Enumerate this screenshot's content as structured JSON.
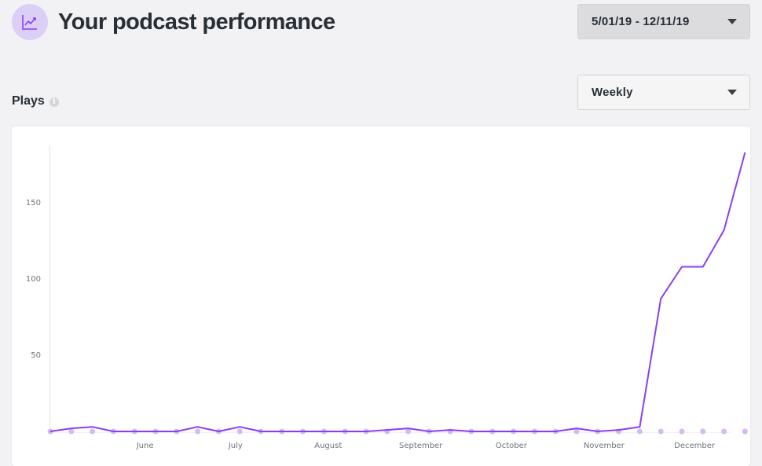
{
  "header": {
    "title": "Your podcast performance",
    "icon": "trend-chart-icon",
    "date_range": "5/01/19 - 12/11/19"
  },
  "plays_section": {
    "title": "Plays",
    "period": "Weekly"
  },
  "colors": {
    "accent": "#8a3ff0",
    "marker": "#d4b8f8",
    "icon_bg": "#dccff7"
  },
  "chart_data": {
    "type": "line",
    "title": "Plays",
    "xlabel": "",
    "ylabel": "",
    "ylim": [
      0,
      183
    ],
    "y_ticks": [
      50,
      100,
      150
    ],
    "grid": false,
    "x_tick_labels": [
      "June",
      "July",
      "August",
      "September",
      "October",
      "November",
      "December"
    ],
    "x_tick_positions": [
      4.5,
      8.8,
      13.2,
      17.6,
      21.9,
      26.3,
      30.6
    ],
    "series": [
      {
        "values": [
          0,
          2,
          3,
          0,
          0,
          0,
          0,
          3,
          0,
          3,
          0,
          0,
          0,
          0,
          0,
          0,
          1,
          2,
          0,
          1,
          0,
          0,
          0,
          0,
          0,
          2,
          0,
          1,
          3,
          87,
          108,
          108,
          132,
          183
        ]
      }
    ]
  }
}
